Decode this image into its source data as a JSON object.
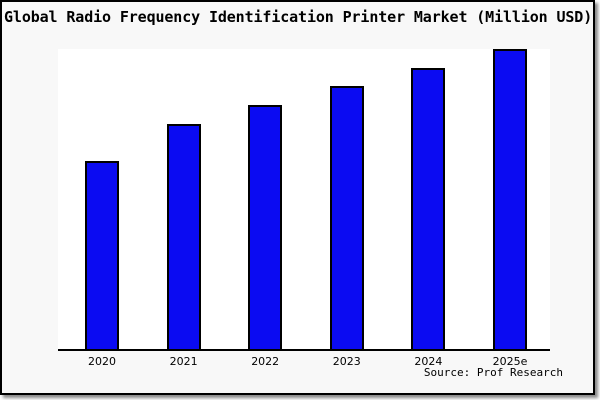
{
  "chart_data": {
    "type": "bar",
    "title": "Global Radio Frequency Identification Printer Market (Million USD)",
    "categories": [
      "2020",
      "2021",
      "2022",
      "2023",
      "2024",
      "2025e"
    ],
    "values": [
      62.8,
      75.1,
      81.4,
      87.7,
      93.7,
      100
    ],
    "values_note": "No y-axis ticks or data labels shown; values are relative bar heights normalized so 2025e = 100",
    "xlabel": "",
    "ylabel": "",
    "ylim": [
      0,
      100.3
    ],
    "grid": false,
    "legend": false,
    "bar_color": "#0b0bf2",
    "bar_border_color": "#000000",
    "plot_background": "#ffffff",
    "canvas_background": "#f8f8f8",
    "source": "Source: Prof Research"
  }
}
